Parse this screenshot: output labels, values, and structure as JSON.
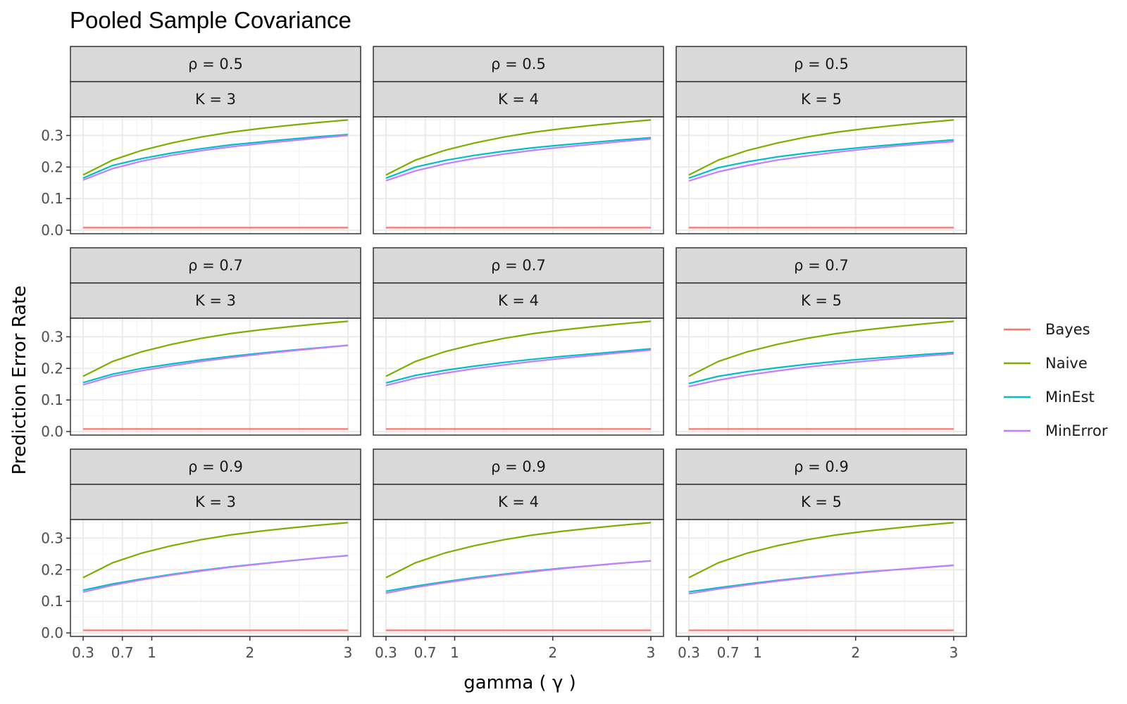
{
  "chart_data": {
    "type": "line",
    "title": "Pooled Sample Covariance",
    "xlabel": "gamma ( γ )",
    "ylabel": "Prediction Error Rate",
    "facet_row_var": "ρ",
    "facet_col_var": "K",
    "facet_rows": [
      "ρ  = 0.5",
      "ρ  = 0.7",
      "ρ  = 0.9"
    ],
    "facet_cols": [
      "K  = 3",
      "K  = 4",
      "K  = 5"
    ],
    "xlim": [
      0.3,
      3
    ],
    "ylim": [
      0,
      0.35
    ],
    "x_ticks": [
      0.3,
      0.7,
      1,
      2,
      3
    ],
    "x_tick_labels": [
      "0.3",
      "0.7",
      "1",
      "2",
      "3"
    ],
    "y_ticks": [
      0,
      0.1,
      0.2,
      0.3
    ],
    "y_tick_labels": [
      "0.0",
      "0.1",
      "0.2",
      "0.3"
    ],
    "x": [
      0.3,
      0.6,
      0.9,
      1.2,
      1.5,
      1.8,
      2.1,
      2.4,
      2.7,
      3.0
    ],
    "series_names": [
      "Bayes",
      "Naive",
      "MinEst",
      "MinError"
    ],
    "colors": {
      "Bayes": "#F8766D",
      "Naive": "#7CAE00",
      "MinEst": "#00BFC4",
      "MinError": "#C77CFF"
    },
    "grid": true,
    "legend_position": "right",
    "panels": [
      {
        "rho": 0.5,
        "K": 3,
        "series": [
          {
            "name": "Bayes",
            "values": [
              0.008,
              0.008,
              0.008,
              0.008,
              0.008,
              0.008,
              0.008,
              0.008,
              0.008,
              0.008
            ]
          },
          {
            "name": "Naive",
            "values": [
              0.175,
              0.222,
              0.253,
              0.276,
              0.295,
              0.31,
              0.322,
              0.332,
              0.341,
              0.349
            ]
          },
          {
            "name": "MinEst",
            "values": [
              0.165,
              0.205,
              0.227,
              0.244,
              0.258,
              0.27,
              0.279,
              0.288,
              0.296,
              0.303
            ]
          },
          {
            "name": "MinError",
            "values": [
              0.159,
              0.195,
              0.219,
              0.237,
              0.252,
              0.264,
              0.274,
              0.283,
              0.292,
              0.3
            ]
          }
        ]
      },
      {
        "rho": 0.5,
        "K": 4,
        "series": [
          {
            "name": "Bayes",
            "values": [
              0.008,
              0.008,
              0.008,
              0.008,
              0.008,
              0.008,
              0.008,
              0.008,
              0.008,
              0.008
            ]
          },
          {
            "name": "Naive",
            "values": [
              0.175,
              0.222,
              0.253,
              0.276,
              0.295,
              0.31,
              0.322,
              0.332,
              0.341,
              0.349
            ]
          },
          {
            "name": "MinEst",
            "values": [
              0.165,
              0.2,
              0.221,
              0.237,
              0.25,
              0.261,
              0.27,
              0.278,
              0.286,
              0.293
            ]
          },
          {
            "name": "MinError",
            "values": [
              0.157,
              0.188,
              0.21,
              0.227,
              0.241,
              0.253,
              0.263,
              0.272,
              0.281,
              0.289
            ]
          }
        ]
      },
      {
        "rho": 0.5,
        "K": 5,
        "series": [
          {
            "name": "Bayes",
            "values": [
              0.008,
              0.008,
              0.008,
              0.008,
              0.008,
              0.008,
              0.008,
              0.008,
              0.008,
              0.008
            ]
          },
          {
            "name": "Naive",
            "values": [
              0.175,
              0.222,
              0.253,
              0.276,
              0.295,
              0.31,
              0.322,
              0.332,
              0.341,
              0.349
            ]
          },
          {
            "name": "MinEst",
            "values": [
              0.165,
              0.198,
              0.217,
              0.232,
              0.244,
              0.254,
              0.263,
              0.271,
              0.279,
              0.286
            ]
          },
          {
            "name": "MinError",
            "values": [
              0.156,
              0.185,
              0.205,
              0.222,
              0.235,
              0.247,
              0.257,
              0.266,
              0.274,
              0.281
            ]
          }
        ]
      },
      {
        "rho": 0.7,
        "K": 3,
        "series": [
          {
            "name": "Bayes",
            "values": [
              0.008,
              0.008,
              0.008,
              0.008,
              0.008,
              0.008,
              0.008,
              0.008,
              0.008,
              0.008
            ]
          },
          {
            "name": "Naive",
            "values": [
              0.175,
              0.222,
              0.253,
              0.276,
              0.295,
              0.31,
              0.322,
              0.332,
              0.341,
              0.349
            ]
          },
          {
            "name": "MinEst",
            "values": [
              0.155,
              0.182,
              0.2,
              0.214,
              0.227,
              0.238,
              0.248,
              0.257,
              0.265,
              0.273
            ]
          },
          {
            "name": "MinError",
            "values": [
              0.148,
              0.175,
              0.193,
              0.208,
              0.222,
              0.234,
              0.245,
              0.255,
              0.264,
              0.273
            ]
          }
        ]
      },
      {
        "rho": 0.7,
        "K": 4,
        "series": [
          {
            "name": "Bayes",
            "values": [
              0.008,
              0.008,
              0.008,
              0.008,
              0.008,
              0.008,
              0.008,
              0.008,
              0.008,
              0.008
            ]
          },
          {
            "name": "Naive",
            "values": [
              0.175,
              0.222,
              0.253,
              0.276,
              0.295,
              0.31,
              0.322,
              0.332,
              0.341,
              0.349
            ]
          },
          {
            "name": "MinEst",
            "values": [
              0.154,
              0.178,
              0.194,
              0.207,
              0.219,
              0.229,
              0.238,
              0.246,
              0.254,
              0.262
            ]
          },
          {
            "name": "MinError",
            "values": [
              0.146,
              0.169,
              0.185,
              0.199,
              0.211,
              0.222,
              0.232,
              0.241,
              0.25,
              0.258
            ]
          }
        ]
      },
      {
        "rho": 0.7,
        "K": 5,
        "series": [
          {
            "name": "Bayes",
            "values": [
              0.008,
              0.008,
              0.008,
              0.008,
              0.008,
              0.008,
              0.008,
              0.008,
              0.008,
              0.008
            ]
          },
          {
            "name": "Naive",
            "values": [
              0.175,
              0.222,
              0.253,
              0.276,
              0.295,
              0.31,
              0.322,
              0.332,
              0.341,
              0.349
            ]
          },
          {
            "name": "MinEst",
            "values": [
              0.152,
              0.175,
              0.19,
              0.202,
              0.213,
              0.222,
              0.23,
              0.237,
              0.244,
              0.25
            ]
          },
          {
            "name": "MinError",
            "values": [
              0.143,
              0.163,
              0.179,
              0.192,
              0.204,
              0.214,
              0.223,
              0.231,
              0.239,
              0.246
            ]
          }
        ]
      },
      {
        "rho": 0.9,
        "K": 3,
        "series": [
          {
            "name": "Bayes",
            "values": [
              0.008,
              0.008,
              0.008,
              0.008,
              0.008,
              0.008,
              0.008,
              0.008,
              0.008,
              0.008
            ]
          },
          {
            "name": "Naive",
            "values": [
              0.175,
              0.222,
              0.253,
              0.276,
              0.295,
              0.31,
              0.322,
              0.332,
              0.341,
              0.349
            ]
          },
          {
            "name": "MinEst",
            "values": [
              0.135,
              0.155,
              0.171,
              0.185,
              0.198,
              0.209,
              0.219,
              0.228,
              0.237,
              0.245
            ]
          },
          {
            "name": "MinError",
            "values": [
              0.129,
              0.151,
              0.168,
              0.183,
              0.196,
              0.208,
              0.218,
              0.228,
              0.237,
              0.245
            ]
          }
        ]
      },
      {
        "rho": 0.9,
        "K": 4,
        "series": [
          {
            "name": "Bayes",
            "values": [
              0.008,
              0.008,
              0.008,
              0.008,
              0.008,
              0.008,
              0.008,
              0.008,
              0.008,
              0.008
            ]
          },
          {
            "name": "Naive",
            "values": [
              0.175,
              0.222,
              0.253,
              0.276,
              0.295,
              0.31,
              0.322,
              0.332,
              0.341,
              0.349
            ]
          },
          {
            "name": "MinEst",
            "values": [
              0.132,
              0.148,
              0.162,
              0.175,
              0.186,
              0.196,
              0.205,
              0.213,
              0.221,
              0.228
            ]
          },
          {
            "name": "MinError",
            "values": [
              0.126,
              0.144,
              0.159,
              0.172,
              0.184,
              0.194,
              0.204,
              0.213,
              0.221,
              0.228
            ]
          }
        ]
      },
      {
        "rho": 0.9,
        "K": 5,
        "series": [
          {
            "name": "Bayes",
            "values": [
              0.008,
              0.008,
              0.008,
              0.008,
              0.008,
              0.008,
              0.008,
              0.008,
              0.008,
              0.008
            ]
          },
          {
            "name": "Naive",
            "values": [
              0.175,
              0.222,
              0.253,
              0.276,
              0.295,
              0.31,
              0.322,
              0.332,
              0.341,
              0.349
            ]
          },
          {
            "name": "MinEst",
            "values": [
              0.13,
              0.143,
              0.155,
              0.166,
              0.176,
              0.185,
              0.193,
              0.2,
              0.207,
              0.214
            ]
          },
          {
            "name": "MinError",
            "values": [
              0.124,
              0.139,
              0.152,
              0.164,
              0.174,
              0.184,
              0.192,
              0.2,
              0.207,
              0.214
            ]
          }
        ]
      }
    ]
  }
}
